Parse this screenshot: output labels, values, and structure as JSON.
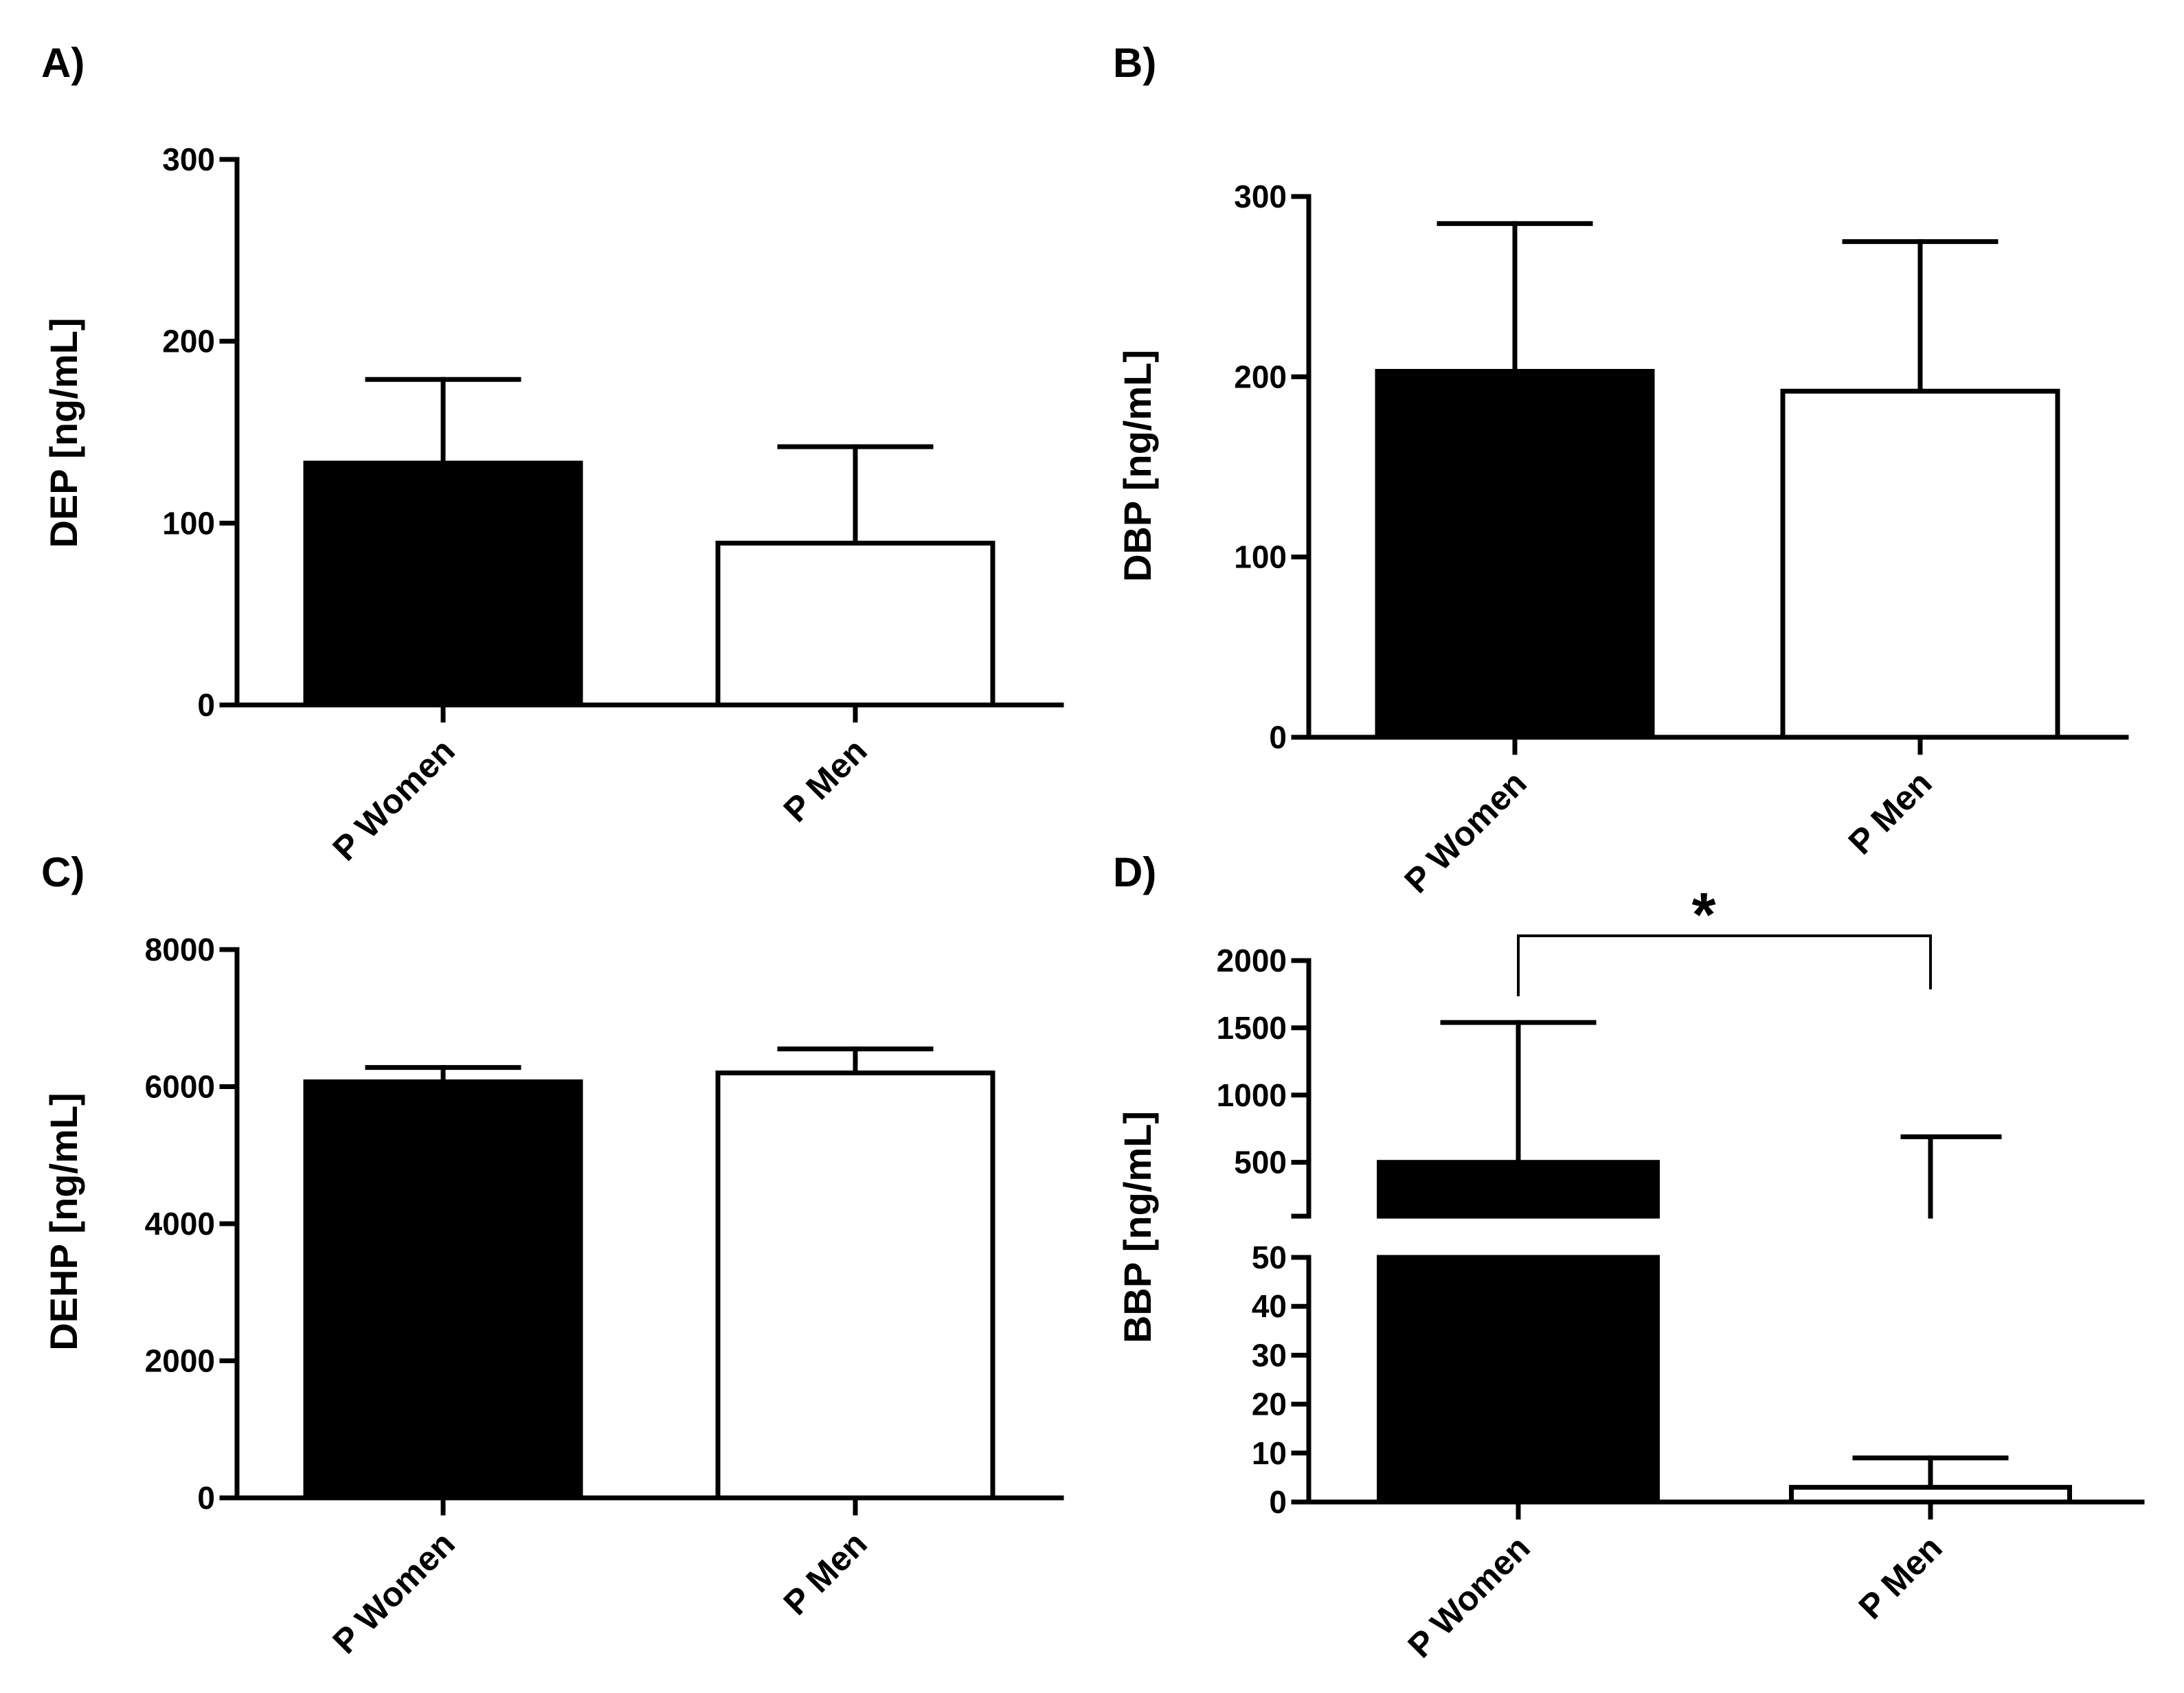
{
  "chart_data": [
    {
      "panel": "A)",
      "type": "bar",
      "ylabel": "DEP [ng/mL]",
      "categories": [
        "P Women",
        "P Men"
      ],
      "values": [
        133,
        89
      ],
      "errors_upper": [
        179,
        142
      ],
      "fills": [
        "#000000",
        "#ffffff"
      ],
      "ylim": [
        0,
        300
      ],
      "yticks": [
        0,
        100,
        200,
        300
      ],
      "ytick_labels": [
        "0",
        "100",
        "200",
        "300"
      ]
    },
    {
      "panel": "B)",
      "type": "bar",
      "ylabel": "DBP [ng/mL]",
      "categories": [
        "P Women",
        "P Men"
      ],
      "values": [
        203,
        192
      ],
      "errors_upper": [
        285,
        275
      ],
      "fills": [
        "#000000",
        "#ffffff"
      ],
      "ylim": [
        0,
        300
      ],
      "yticks": [
        0,
        100,
        200,
        300
      ],
      "ytick_labels": [
        "0",
        "100",
        "200",
        "300"
      ]
    },
    {
      "panel": "C)",
      "type": "bar",
      "ylabel": "DEHP [ng/mL]",
      "categories": [
        "P Women",
        "P Men"
      ],
      "values": [
        6070,
        6200
      ],
      "errors_upper": [
        6280,
        6550
      ],
      "fills": [
        "#000000",
        "#ffffff"
      ],
      "ylim": [
        0,
        8000
      ],
      "yticks": [
        0,
        2000,
        4000,
        6000,
        8000
      ],
      "ytick_labels": [
        "0",
        "2000",
        "4000",
        "6000",
        "8000"
      ]
    },
    {
      "panel": "D)",
      "type": "bar",
      "ylabel": "BBP [ng/mL]",
      "categories": [
        "P Women",
        "P Men"
      ],
      "values": [
        500,
        3
      ],
      "errors_upper": [
        1540,
        690
      ],
      "fills": [
        "#000000",
        "#ffffff"
      ],
      "axis_break": {
        "lower_range": [
          0,
          50
        ],
        "upper_range": [
          100,
          2000
        ]
      },
      "yticks_lower": [
        0,
        10,
        20,
        30,
        40,
        50
      ],
      "ytick_labels_lower": [
        "0",
        "10",
        "20",
        "30",
        "40",
        "50"
      ],
      "yticks_upper": [
        500,
        1000,
        1500,
        2000
      ],
      "ytick_labels_upper": [
        "500",
        "1000",
        "1500",
        "2000"
      ],
      "men_lower_error_upper": 9,
      "significance": "*"
    }
  ]
}
